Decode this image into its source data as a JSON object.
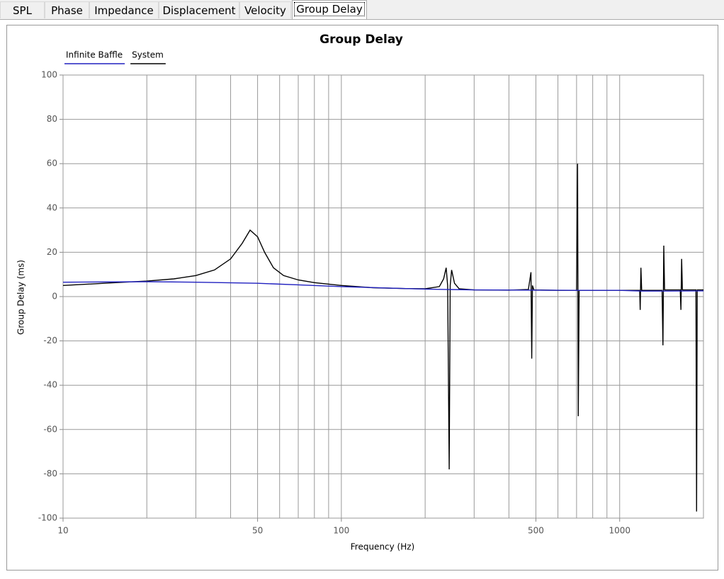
{
  "tabs": [
    "SPL",
    "Phase",
    "Impedance",
    "Displacement",
    "Velocity",
    "Group Delay"
  ],
  "selected_tab": 5,
  "chart_data": {
    "type": "line",
    "title": "Group Delay",
    "x_label": "Frequency (Hz)",
    "y_label": "Group Delay (ms)",
    "xscale": "log",
    "xlim": [
      10,
      2000
    ],
    "ylim": [
      -100,
      100
    ],
    "xticks": [
      10,
      50,
      100,
      500,
      1000
    ],
    "x_minor_ticks": [
      20,
      30,
      40,
      60,
      70,
      80,
      90,
      200,
      300,
      400,
      600,
      700,
      800,
      900,
      2000
    ],
    "yticks": [
      -100,
      -80,
      -60,
      -40,
      -20,
      0,
      20,
      40,
      60,
      80,
      100
    ],
    "grid": true,
    "legend": "top-left",
    "series": [
      {
        "name": "Infinite Baffle",
        "color": "#2020c0",
        "x": [
          10,
          20,
          30,
          50,
          70,
          100,
          150,
          200,
          300,
          500,
          700,
          1000,
          1200,
          1500,
          2000
        ],
        "values": [
          6.5,
          6.7,
          6.5,
          6,
          5.3,
          4.5,
          3.8,
          3.4,
          3,
          2.9,
          2.8,
          2.8,
          2.5,
          2.5,
          2.6
        ]
      },
      {
        "name": "System",
        "color": "#000000",
        "x": [
          10,
          15,
          20,
          25,
          30,
          35,
          40,
          44,
          47,
          50,
          53,
          57,
          62,
          70,
          80,
          100,
          130,
          170,
          200,
          225,
          233,
          238,
          241,
          244,
          246,
          249,
          255,
          265,
          300,
          400,
          470,
          480,
          483,
          486,
          492,
          600,
          700,
          706,
          710,
          715,
          1000,
          1180,
          1185,
          1192,
          1200,
          1420,
          1430,
          1440,
          1450,
          1650,
          1660,
          1670,
          1680,
          1880,
          1890,
          1900,
          2000
        ],
        "values": [
          5,
          6.2,
          7,
          8,
          9.5,
          12,
          17,
          24,
          30,
          27,
          20,
          13,
          9.5,
          7.5,
          6.3,
          5,
          4,
          3.6,
          3.5,
          4.5,
          8,
          13,
          5,
          -78,
          5,
          12,
          6,
          3.5,
          3,
          2.9,
          3.2,
          11,
          -28,
          5,
          3,
          2.8,
          2.8,
          60,
          -54,
          2.8,
          2.8,
          2.8,
          -6,
          13,
          2.8,
          2.8,
          -22,
          23,
          3,
          3,
          -6,
          17,
          3,
          3,
          -97,
          3,
          3
        ]
      }
    ]
  }
}
